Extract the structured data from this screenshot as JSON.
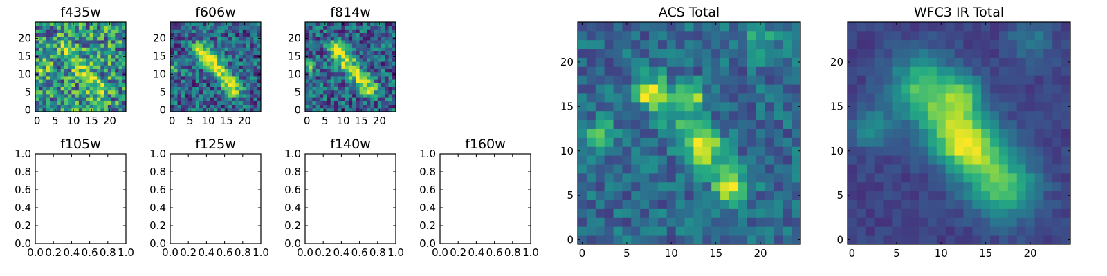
{
  "colors": {
    "background": "#ffffff",
    "axis": "#000000",
    "colormap": [
      "#440154",
      "#3b528b",
      "#21918c",
      "#5ec962",
      "#fde725"
    ]
  },
  "chart_data": [
    {
      "type": "heatmap",
      "id": "f435w",
      "title": "f435w",
      "xticks": [
        "0",
        "5",
        "10",
        "15",
        "20"
      ],
      "yticks": [
        "0",
        "5",
        "10",
        "15",
        "20"
      ],
      "xlim": [
        -0.5,
        24.5
      ],
      "ylim": [
        -0.5,
        24.5
      ],
      "grid_size": 25,
      "colormap": "viridis",
      "structure": {
        "background": 0.55,
        "noise": 0.55,
        "features": "diagonal band from (8,17) to (17,6), blob at (1,12), blob at (12,16)"
      }
    },
    {
      "type": "heatmap",
      "id": "f606w",
      "title": "f606w",
      "xticks": [
        "0",
        "5",
        "10",
        "15",
        "20"
      ],
      "yticks": [
        "0",
        "5",
        "10",
        "15",
        "20"
      ],
      "xlim": [
        -0.5,
        24.5
      ],
      "ylim": [
        -0.5,
        24.5
      ],
      "grid_size": 25,
      "colormap": "viridis",
      "structure": {
        "background": 0.38,
        "noise": 0.45,
        "features": "diagonal band from (8,17) to (17,6), blob at (1,12), blob at (12,16)"
      }
    },
    {
      "type": "heatmap",
      "id": "f814w",
      "title": "f814w",
      "xticks": [
        "0",
        "5",
        "10",
        "15",
        "20"
      ],
      "yticks": [
        "0",
        "5",
        "10",
        "15",
        "20"
      ],
      "xlim": [
        -0.5,
        24.5
      ],
      "ylim": [
        -0.5,
        24.5
      ],
      "grid_size": 25,
      "colormap": "viridis",
      "structure": {
        "background": 0.4,
        "noise": 0.45,
        "features": "diagonal band from (8,17) to (17,6), blob at (1,12), blob at (12,16)"
      }
    },
    {
      "type": "line",
      "id": "f105w",
      "title": "f105w",
      "xlim": [
        0,
        1
      ],
      "ylim": [
        0,
        1
      ],
      "xticks": [
        "0.0",
        "0.2",
        "0.4",
        "0.6",
        "0.8",
        "1.0"
      ],
      "yticks": [
        "0.0",
        "0.2",
        "0.4",
        "0.6",
        "0.8",
        "1.0"
      ],
      "series": []
    },
    {
      "type": "line",
      "id": "f125w",
      "title": "f125w",
      "xlim": [
        0,
        1
      ],
      "ylim": [
        0,
        1
      ],
      "xticks": [
        "0.0",
        "0.2",
        "0.4",
        "0.6",
        "0.8",
        "1.0"
      ],
      "yticks": [
        "0.0",
        "0.2",
        "0.4",
        "0.6",
        "0.8",
        "1.0"
      ],
      "series": []
    },
    {
      "type": "line",
      "id": "f140w",
      "title": "f140w",
      "xlim": [
        0,
        1
      ],
      "ylim": [
        0,
        1
      ],
      "xticks": [
        "0.0",
        "0.2",
        "0.4",
        "0.6",
        "0.8",
        "1.0"
      ],
      "yticks": [
        "0.0",
        "0.2",
        "0.4",
        "0.6",
        "0.8",
        "1.0"
      ],
      "series": []
    },
    {
      "type": "line",
      "id": "f160w",
      "title": "f160w",
      "xlim": [
        0,
        1
      ],
      "ylim": [
        0,
        1
      ],
      "xticks": [
        "0.0",
        "0.2",
        "0.4",
        "0.6",
        "0.8",
        "1.0"
      ],
      "yticks": [
        "0.0",
        "0.2",
        "0.4",
        "0.6",
        "0.8",
        "1.0"
      ],
      "series": []
    },
    {
      "type": "heatmap",
      "id": "acs-total",
      "title": "ACS Total",
      "xticks": [
        "0",
        "5",
        "10",
        "15",
        "20"
      ],
      "yticks": [
        "0",
        "5",
        "10",
        "15",
        "20"
      ],
      "xlim": [
        -0.5,
        24.5
      ],
      "ylim": [
        -0.5,
        24.5
      ],
      "grid_size": 25,
      "colormap": "viridis",
      "structure": {
        "background": 0.35,
        "noise": 0.28,
        "features": "peaks at (7.5,16.5), (12.5,16.5), (2,12), (13.5,10.5), (16.5,6); bright patch at (20,22)"
      }
    },
    {
      "type": "heatmap",
      "id": "wfc3-ir-total",
      "title": "WFC3 IR Total",
      "xticks": [
        "0",
        "5",
        "10",
        "15",
        "20"
      ],
      "yticks": [
        "0",
        "5",
        "10",
        "15",
        "20"
      ],
      "xlim": [
        -0.5,
        24.5
      ],
      "ylim": [
        -0.5,
        24.5
      ],
      "grid_size": 25,
      "colormap": "viridis",
      "structure": {
        "background": 0.2,
        "noise": 0.12,
        "features": "smooth diagonal band from (9,17) to (16,7), peaks at (12.5,16.5) and (12.5,11), blob at (2,12.5), patch at (20,22)"
      }
    }
  ]
}
